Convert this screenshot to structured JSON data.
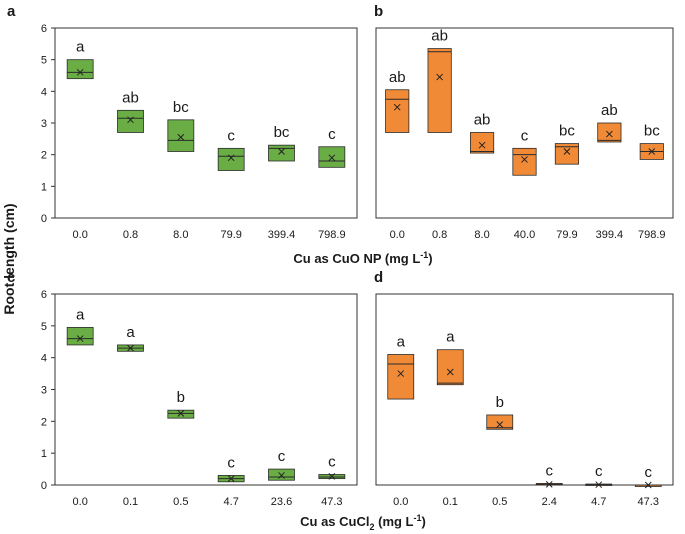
{
  "y_axis_label": "Root length (cm)",
  "x_axis_top": {
    "prefix": "Cu as CuO NP (mg L",
    "sup": "-1",
    "suffix": ")"
  },
  "x_axis_bottom": {
    "prefix": "Cu as CuCl",
    "sub": "2",
    "middle": " (mg L",
    "sup": "-1",
    "suffix": ")"
  },
  "colors": {
    "green": "#6aad45",
    "orange": "#f08a36",
    "frame": "#333333"
  },
  "chart_data": [
    {
      "panel": "a",
      "type": "box",
      "color": "green",
      "ylim": [
        0,
        6
      ],
      "yticks": [
        0,
        1,
        2,
        3,
        4,
        5,
        6
      ],
      "categories": [
        "0.0",
        "0.8",
        "8.0",
        "79.9",
        "399.4",
        "798.9"
      ],
      "boxes": [
        {
          "q1": 4.4,
          "median": 4.6,
          "q3": 5.0,
          "mean": 4.6,
          "letter": "a"
        },
        {
          "q1": 2.7,
          "median": 3.15,
          "q3": 3.4,
          "mean": 3.1,
          "letter": "ab"
        },
        {
          "q1": 2.1,
          "median": 2.45,
          "q3": 3.1,
          "mean": 2.55,
          "letter": "bc"
        },
        {
          "q1": 1.5,
          "median": 1.95,
          "q3": 2.2,
          "mean": 1.9,
          "letter": "c"
        },
        {
          "q1": 1.8,
          "median": 2.2,
          "q3": 2.3,
          "mean": 2.1,
          "letter": "bc"
        },
        {
          "q1": 1.6,
          "median": 1.8,
          "q3": 2.25,
          "mean": 1.9,
          "letter": "c"
        }
      ]
    },
    {
      "panel": "b",
      "type": "box",
      "color": "orange",
      "ylim": [
        0,
        6
      ],
      "yticks": [
        0,
        1,
        2,
        3,
        4,
        5,
        6
      ],
      "categories": [
        "0.0",
        "0.8",
        "8.0",
        "40.0",
        "79.9",
        "399.4",
        "798.9"
      ],
      "boxes": [
        {
          "q1": 2.7,
          "median": 3.75,
          "q3": 4.05,
          "mean": 3.5,
          "letter": "ab"
        },
        {
          "q1": 2.7,
          "median": 5.25,
          "q3": 5.35,
          "mean": 4.45,
          "letter": "ab"
        },
        {
          "q1": 2.05,
          "median": 2.1,
          "q3": 2.7,
          "mean": 2.3,
          "letter": "ab"
        },
        {
          "q1": 1.35,
          "median": 2.0,
          "q3": 2.2,
          "mean": 1.85,
          "letter": "c"
        },
        {
          "q1": 1.7,
          "median": 2.25,
          "q3": 2.35,
          "mean": 2.1,
          "letter": "bc"
        },
        {
          "q1": 2.4,
          "median": 2.45,
          "q3": 3.0,
          "mean": 2.65,
          "letter": "ab"
        },
        {
          "q1": 1.85,
          "median": 2.1,
          "q3": 2.35,
          "mean": 2.1,
          "letter": "bc"
        }
      ]
    },
    {
      "panel": "c",
      "type": "box",
      "color": "green",
      "ylim": [
        0,
        6
      ],
      "yticks": [
        0,
        1,
        2,
        3,
        4,
        5,
        6
      ],
      "categories": [
        "0.0",
        "0.1",
        "0.5",
        "4.7",
        "23.6",
        "47.3"
      ],
      "boxes": [
        {
          "q1": 4.4,
          "median": 4.6,
          "q3": 4.95,
          "mean": 4.6,
          "letter": "a"
        },
        {
          "q1": 4.2,
          "median": 4.3,
          "q3": 4.4,
          "mean": 4.3,
          "letter": "a"
        },
        {
          "q1": 2.1,
          "median": 2.25,
          "q3": 2.35,
          "mean": 2.25,
          "letter": "b"
        },
        {
          "q1": 0.1,
          "median": 0.2,
          "q3": 0.3,
          "mean": 0.2,
          "letter": "c"
        },
        {
          "q1": 0.15,
          "median": 0.25,
          "q3": 0.5,
          "mean": 0.3,
          "letter": "c"
        },
        {
          "q1": 0.2,
          "median": 0.25,
          "q3": 0.33,
          "mean": 0.27,
          "letter": "c"
        }
      ]
    },
    {
      "panel": "d",
      "type": "box",
      "color": "orange",
      "ylim": [
        0,
        6
      ],
      "yticks": [
        0,
        1,
        2,
        3,
        4,
        5,
        6
      ],
      "categories": [
        "0.0",
        "0.1",
        "0.5",
        "2.4",
        "4.7",
        "47.3"
      ],
      "boxes": [
        {
          "q1": 2.7,
          "median": 3.8,
          "q3": 4.1,
          "mean": 3.5,
          "letter": "a"
        },
        {
          "q1": 3.15,
          "median": 3.2,
          "q3": 4.25,
          "mean": 3.55,
          "letter": "a"
        },
        {
          "q1": 1.75,
          "median": 1.8,
          "q3": 2.2,
          "mean": 1.9,
          "letter": "b"
        },
        {
          "q1": 0.0,
          "median": 0.02,
          "q3": 0.05,
          "mean": 0.02,
          "letter": "c"
        },
        {
          "q1": 0.0,
          "median": 0.01,
          "q3": 0.03,
          "mean": 0.01,
          "letter": "c"
        },
        {
          "q1": 0.0,
          "median": 0.0,
          "q3": 0.0,
          "mean": 0.0,
          "letter": "c"
        }
      ]
    }
  ]
}
